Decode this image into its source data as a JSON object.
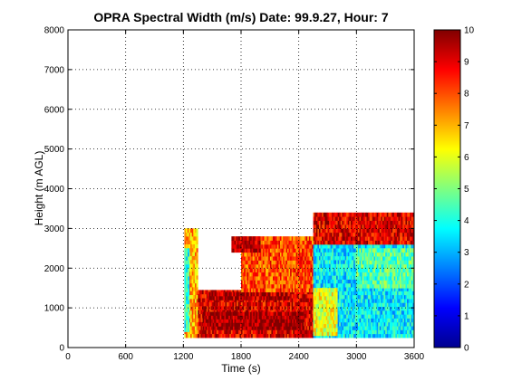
{
  "chart_data": {
    "type": "heatmap",
    "title": "OPRA Spectral Width (m/s)  Date: 99.9.27, Hour: 7",
    "xlabel": "Time (s)",
    "ylabel": "Height (m AGL)",
    "xlim": [
      0,
      3600
    ],
    "ylim": [
      0,
      8000
    ],
    "xticks": [
      "0",
      "600",
      "1200",
      "1800",
      "2400",
      "3000",
      "3600"
    ],
    "yticks": [
      "0",
      "1000",
      "2000",
      "3000",
      "4000",
      "5000",
      "6000",
      "7000",
      "8000"
    ],
    "grid": true,
    "colormap": "jet",
    "colorbar": {
      "range": [
        0,
        10
      ],
      "ticks": [
        "0",
        "1",
        "2",
        "3",
        "4",
        "5",
        "6",
        "7",
        "8",
        "9",
        "10"
      ]
    },
    "data_extent": {
      "x": [
        1210,
        3600
      ],
      "y": [
        250,
        3400
      ]
    },
    "regions": [
      {
        "x": [
          1210,
          1350
        ],
        "y": [
          250,
          3000
        ],
        "value": 7.0
      },
      {
        "x": [
          1210,
          1260
        ],
        "y": [
          400,
          2500
        ],
        "value": 4.0
      },
      {
        "x": [
          1350,
          2550
        ],
        "y": [
          250,
          1450
        ],
        "value": 9.0
      },
      {
        "x": [
          1400,
          2450
        ],
        "y": [
          450,
          900
        ],
        "value": 9.8
      },
      {
        "x": [
          1450,
          2300
        ],
        "y": [
          1200,
          1400
        ],
        "value": 9.5
      },
      {
        "x": [
          1800,
          2550
        ],
        "y": [
          1400,
          2800
        ],
        "value": 8.0
      },
      {
        "x": [
          1700,
          2000
        ],
        "y": [
          2400,
          2800
        ],
        "value": 9.5
      },
      {
        "x": [
          2550,
          3600
        ],
        "y": [
          250,
          2700
        ],
        "value": 3.6
      },
      {
        "x": [
          2550,
          2800
        ],
        "y": [
          300,
          1500
        ],
        "value": 6.0
      },
      {
        "x": [
          2550,
          3600
        ],
        "y": [
          2600,
          3400
        ],
        "value": 9.0
      },
      {
        "x": [
          3000,
          3600
        ],
        "y": [
          1500,
          2500
        ],
        "value": 4.5
      }
    ]
  }
}
